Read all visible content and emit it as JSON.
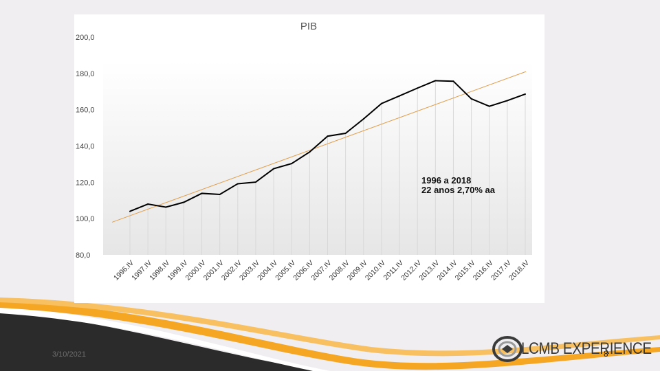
{
  "slide": {
    "date": "3/10/2021",
    "page_number": "8",
    "brand": "LCMB EXPERIENCE",
    "colors": {
      "swoosh_orange": "#f5a623",
      "swoosh_dark": "#2b2b2b",
      "background": "#f0eef0",
      "logo": "#3a3a3a"
    }
  },
  "chart_data": {
    "type": "line",
    "title": "PIB",
    "xlabel": "",
    "ylabel": "",
    "ylim": [
      80,
      200
    ],
    "yticks": [
      "80,0",
      "100,0",
      "120,0",
      "140,0",
      "160,0",
      "180,0",
      "200,0"
    ],
    "categories": [
      "1996.IV",
      "1997.IV",
      "1998.IV",
      "1999.IV",
      "2000.IV",
      "2001.IV",
      "2002.IV",
      "2003.IV",
      "2004.IV",
      "2005.IV",
      "2006.IV",
      "2007.IV",
      "2008.IV",
      "2009.IV",
      "2010.IV",
      "2011.IV",
      "2012.IV",
      "2013.IV",
      "2014.IV",
      "2015.IV",
      "2016.IV",
      "2017.IV",
      "2018.IV"
    ],
    "series": [
      {
        "values": [
          104.0,
          108.0,
          106.3,
          109.0,
          113.9,
          113.3,
          119.2,
          120.1,
          127.5,
          130.3,
          136.7,
          145.4,
          147.0,
          154.9,
          163.4,
          167.6,
          171.9,
          176.0,
          175.7,
          166.0,
          161.9,
          165.0,
          168.6
        ],
        "color": "#000000"
      }
    ],
    "trendline": {
      "start": 98.0,
      "end": 181.0,
      "color": "#e0a050"
    },
    "annotation": [
      "1996 a 2018",
      "22 anos  2,70% aa"
    ],
    "grid": false,
    "legend": "none"
  }
}
